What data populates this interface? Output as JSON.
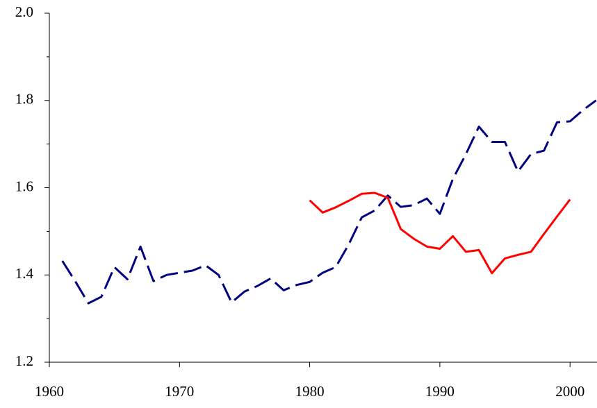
{
  "chart_data": {
    "type": "line",
    "xlim": [
      1960,
      2002
    ],
    "xticks": [
      1960,
      1970,
      1980,
      1990,
      2000
    ],
    "ylim": [
      1.2,
      2.0
    ],
    "yticks": [
      1.2,
      1.4,
      1.6,
      1.8,
      {
        "value": 2.0,
        "label": "2.0"
      }
    ],
    "yminor_ticks": [
      1.3,
      1.5,
      1.7,
      1.9
    ],
    "series": [
      {
        "color": "#000080",
        "dash": true,
        "x": [
          1961,
          1962,
          1963,
          1964,
          1965,
          1966,
          1967,
          1968,
          1969,
          1970,
          1971,
          1972,
          1973,
          1974,
          1975,
          1976,
          1977,
          1978,
          1979,
          1980,
          1981,
          1982,
          1983,
          1984,
          1985,
          1986,
          1987,
          1988,
          1989,
          1990,
          1991,
          1992,
          1993,
          1994,
          1995,
          1996,
          1997,
          1998,
          1999,
          2000,
          2001,
          2002
        ],
        "values": [
          1.432,
          1.385,
          1.335,
          1.35,
          1.418,
          1.39,
          1.465,
          1.386,
          1.4,
          1.405,
          1.41,
          1.422,
          1.4,
          1.337,
          1.362,
          1.375,
          1.392,
          1.365,
          1.377,
          1.384,
          1.405,
          1.418,
          1.47,
          1.532,
          1.548,
          1.582,
          1.556,
          1.56,
          1.575,
          1.54,
          1.62,
          1.677,
          1.74,
          1.705,
          1.705,
          1.637,
          1.677,
          1.685,
          1.75,
          1.752,
          1.778,
          1.8
        ]
      },
      {
        "color": "#ff0000",
        "dash": false,
        "x": [
          1980,
          1981,
          1982,
          1983,
          1984,
          1985,
          1986,
          1987,
          1988,
          1989,
          1990,
          1991,
          1992,
          1993,
          1994,
          1995,
          1996,
          1997,
          1998,
          1999,
          2000
        ],
        "values": [
          1.571,
          1.543,
          1.555,
          1.57,
          1.586,
          1.588,
          1.577,
          1.505,
          1.483,
          1.465,
          1.46,
          1.489,
          1.453,
          1.457,
          1.404,
          1.438,
          1.446,
          1.453,
          1.494,
          1.534,
          1.573
        ]
      }
    ]
  }
}
